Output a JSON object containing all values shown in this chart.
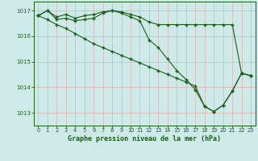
{
  "title": "Graphe pression niveau de la mer (hPa)",
  "background_color": "#ceeae8",
  "grid_color": "#ddb8b8",
  "line_color": "#1a5c1a",
  "marker_color": "#1a5c1a",
  "xlim": [
    -0.5,
    23.5
  ],
  "ylim": [
    1012.5,
    1017.35
  ],
  "yticks": [
    1013,
    1014,
    1015,
    1016,
    1017
  ],
  "xtick_labels": [
    "0",
    "1",
    "2",
    "3",
    "4",
    "5",
    "6",
    "7",
    "8",
    "9",
    "10",
    "11",
    "12",
    "13",
    "14",
    "15",
    "16",
    "17",
    "18",
    "19",
    "20",
    "21",
    "22",
    "23"
  ],
  "series1": [
    1016.8,
    1017.0,
    1016.75,
    1016.85,
    1016.7,
    1016.8,
    1016.85,
    1016.95,
    1017.0,
    1016.95,
    1016.85,
    1016.75,
    1016.55,
    1016.45,
    1016.45,
    1016.45,
    1016.45,
    1016.45,
    1016.45,
    1016.45,
    1016.45,
    1016.45,
    1014.55,
    1014.45
  ],
  "series2": [
    1016.8,
    1017.0,
    1016.65,
    1016.7,
    1016.6,
    1016.65,
    1016.7,
    1016.9,
    1017.0,
    1016.9,
    1016.75,
    1016.6,
    1015.85,
    1015.55,
    1015.1,
    1014.65,
    1014.3,
    1013.9,
    1013.25,
    1013.05,
    1013.3,
    1013.85,
    1014.55,
    1014.45
  ],
  "series3": [
    1016.8,
    1016.65,
    1016.45,
    1016.3,
    1016.1,
    1015.9,
    1015.7,
    1015.55,
    1015.4,
    1015.25,
    1015.1,
    1014.95,
    1014.8,
    1014.65,
    1014.5,
    1014.35,
    1014.2,
    1014.05,
    1013.25,
    1013.05,
    1013.3,
    1013.85,
    1014.55,
    1014.45
  ]
}
